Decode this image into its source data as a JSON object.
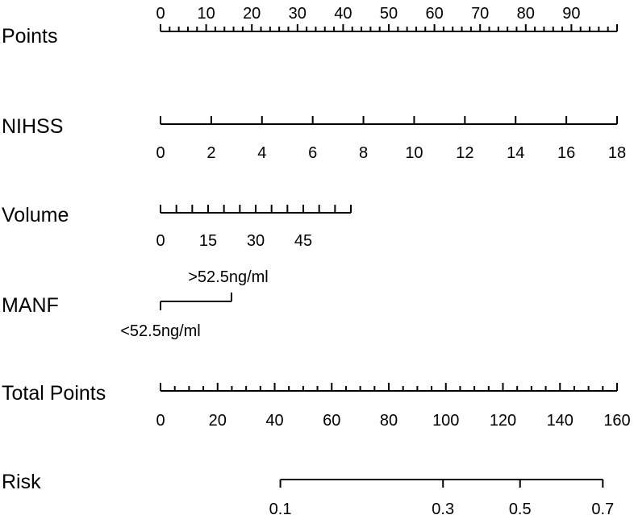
{
  "chart_data": {
    "type": "nomogram",
    "rows": [
      {
        "label": "Points",
        "min": 0,
        "max": 100,
        "major_ticks": [
          0,
          10,
          20,
          30,
          40,
          50,
          60,
          70,
          80,
          90,
          100
        ],
        "minor_ticks": [
          0,
          2,
          4,
          6,
          8,
          10,
          12,
          14,
          16,
          18,
          20,
          22,
          24,
          26,
          28,
          30,
          32,
          34,
          36,
          38,
          40,
          42,
          44,
          46,
          48,
          50,
          52,
          54,
          56,
          58,
          60,
          62,
          64,
          66,
          68,
          70,
          72,
          74,
          76,
          78,
          80,
          82,
          84,
          86,
          88,
          90,
          92,
          94,
          96,
          98,
          100
        ],
        "tick_labels": [
          "0",
          "10",
          "20",
          "30",
          "40",
          "50",
          "60",
          "70",
          "80",
          "90"
        ],
        "tick_label_values": [
          0,
          10,
          20,
          30,
          40,
          50,
          60,
          70,
          80,
          90
        ],
        "labels_above": true
      },
      {
        "label": "NIHSS",
        "min": 0,
        "max": 18,
        "major_ticks": [
          0,
          2,
          4,
          6,
          8,
          10,
          12,
          14,
          16,
          18
        ],
        "minor_ticks": [],
        "tick_labels": [
          "0",
          "2",
          "4",
          "6",
          "8",
          "10",
          "12",
          "14",
          "16",
          "18"
        ],
        "tick_label_values": [
          0,
          2,
          4,
          6,
          8,
          10,
          12,
          14,
          16,
          18
        ],
        "labels_above": false
      },
      {
        "label": "Volume",
        "min": 0,
        "max": 60,
        "major_ticks": [
          0,
          5,
          10,
          15,
          20,
          25,
          30,
          35,
          40,
          45,
          50,
          55,
          60
        ],
        "minor_ticks": [],
        "tick_labels": [
          "0",
          "15",
          "30",
          "45"
        ],
        "tick_label_values": [
          0,
          15,
          30,
          45
        ],
        "labels_above": false
      },
      {
        "label": "MANF",
        "min": 0,
        "max": 1,
        "major_ticks": [
          0
        ],
        "minor_ticks": [],
        "tick_labels": [
          ">52.5ng/ml",
          "<52.5ng/ml"
        ],
        "tick_label_values": [
          1,
          0
        ],
        "labels_above": false,
        "categorical": true
      },
      {
        "label": "Total Points",
        "min": 0,
        "max": 160,
        "major_ticks": [
          0,
          20,
          40,
          60,
          80,
          100,
          120,
          140,
          160
        ],
        "minor_ticks": [
          0,
          5,
          10,
          15,
          20,
          25,
          30,
          35,
          40,
          45,
          50,
          55,
          60,
          65,
          70,
          75,
          80,
          85,
          90,
          95,
          100,
          105,
          110,
          115,
          120,
          125,
          130,
          135,
          140,
          145,
          150,
          155,
          160
        ],
        "tick_labels": [
          "0",
          "20",
          "40",
          "60",
          "80",
          "100",
          "120",
          "140",
          "160"
        ],
        "tick_label_values": [
          0,
          20,
          40,
          60,
          80,
          100,
          120,
          140,
          160
        ],
        "labels_above": false
      },
      {
        "label": "Risk",
        "major_ticks": [
          0.1,
          0.3,
          0.5,
          0.7
        ],
        "minor_ticks": [],
        "tick_labels": [
          "0.1",
          "0.3",
          "0.5",
          "0.7"
        ],
        "tick_label_values": [
          0.1,
          0.3,
          0.5,
          0.7
        ],
        "labels_above": false,
        "risk_total_points": [
          42,
          99,
          126,
          155
        ]
      }
    ]
  }
}
